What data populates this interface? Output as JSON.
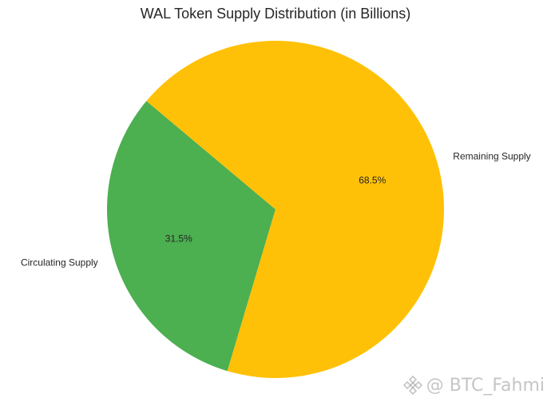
{
  "chart_data": {
    "type": "pie",
    "title": "WAL Token Supply Distribution (in Billions)",
    "categories": [
      "Circulating Supply",
      "Remaining Supply"
    ],
    "values": [
      31.5,
      68.5
    ],
    "percent_labels": [
      "31.5%",
      "68.5%"
    ],
    "colors": [
      "#4caf50",
      "#ffc107"
    ],
    "start_angle_deg": 140,
    "direction": "counterclockwise"
  },
  "watermark": {
    "text": "@ BTC_Fahmi",
    "icon": "binance-logo-icon"
  }
}
